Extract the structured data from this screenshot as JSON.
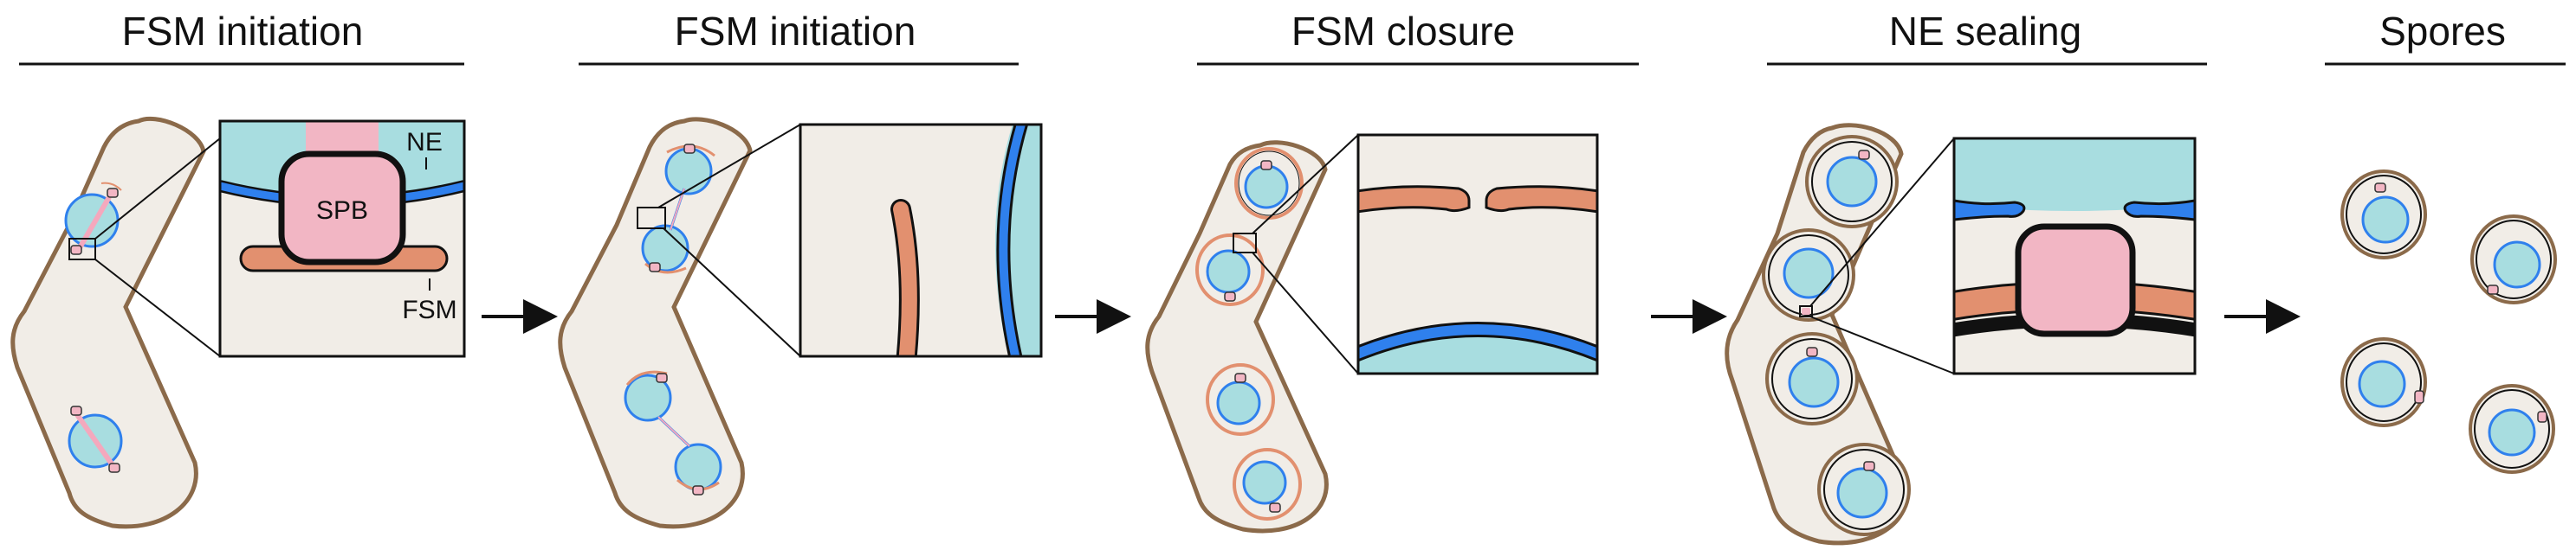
{
  "stages": [
    {
      "title": "FSM initiation"
    },
    {
      "title": "FSM initiation"
    },
    {
      "title": "FSM closure"
    },
    {
      "title": "NE sealing"
    },
    {
      "title": "Spores"
    }
  ],
  "inset_labels": {
    "ne": "NE",
    "spb": "SPB",
    "fsm": "FSM"
  },
  "colors": {
    "cell_fill": "#f1ede7",
    "cell_outline": "#8b6a4a",
    "nucleus": "#a8dde0",
    "nuclear_envelope": "#2f80ed",
    "spb": "#f2b6c4",
    "fsm": "#e2906f",
    "spindle": "#f4a8bd"
  },
  "icons": [
    "arrow-right-icon"
  ]
}
